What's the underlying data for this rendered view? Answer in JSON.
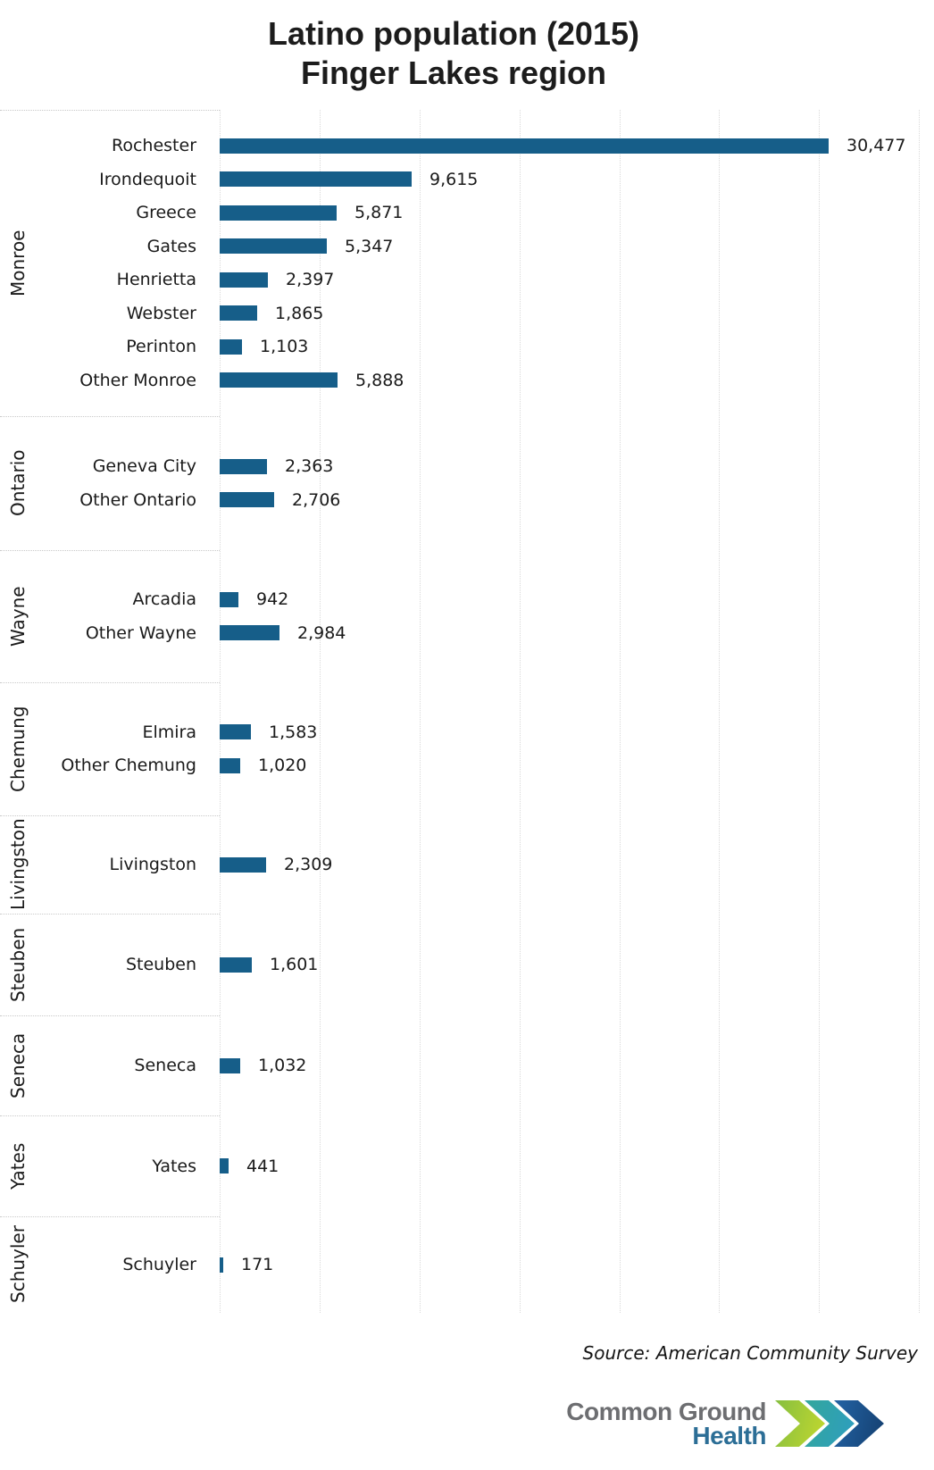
{
  "title": {
    "line1": "Latino population (2015)",
    "line2": "Finger Lakes region"
  },
  "source": "Source: American Community Survey",
  "logo": {
    "line1": "Common Ground",
    "line2": "Health"
  },
  "colors": {
    "bar": "#165e89",
    "gridline": "#d9d9d9",
    "logo_gray": "#6d6e71",
    "logo_blue": "#2c6e96",
    "chevron_green": "#8dc63f",
    "chevron_teal": "#2fa8a4",
    "chevron_blue": "#1c5d9d"
  },
  "chart_data": {
    "type": "bar",
    "orientation": "horizontal",
    "title": "Latino population (2015) Finger Lakes region",
    "xlabel": "",
    "ylabel": "",
    "xlim": [
      0,
      35750
    ],
    "grid_step": 5000,
    "grid": true,
    "value_labels": true,
    "groups": [
      {
        "county": "Monroe",
        "rows": [
          {
            "label": "Rochester",
            "value": 30477,
            "display": "30,477"
          },
          {
            "label": "Irondequoit",
            "value": 9615,
            "display": "9,615"
          },
          {
            "label": "Greece",
            "value": 5871,
            "display": "5,871"
          },
          {
            "label": "Gates",
            "value": 5347,
            "display": "5,347"
          },
          {
            "label": "Henrietta",
            "value": 2397,
            "display": "2,397"
          },
          {
            "label": "Webster",
            "value": 1865,
            "display": "1,865"
          },
          {
            "label": "Perinton",
            "value": 1103,
            "display": "1,103"
          },
          {
            "label": "Other Monroe",
            "value": 5888,
            "display": "5,888"
          }
        ]
      },
      {
        "county": "Ontario",
        "rows": [
          {
            "label": "Geneva City",
            "value": 2363,
            "display": "2,363"
          },
          {
            "label": "Other Ontario",
            "value": 2706,
            "display": "2,706"
          }
        ]
      },
      {
        "county": "Wayne",
        "rows": [
          {
            "label": "Arcadia",
            "value": 942,
            "display": "942"
          },
          {
            "label": "Other Wayne",
            "value": 2984,
            "display": "2,984"
          }
        ]
      },
      {
        "county": "Chemung",
        "rows": [
          {
            "label": "Elmira",
            "value": 1583,
            "display": "1,583"
          },
          {
            "label": "Other Chemung",
            "value": 1020,
            "display": "1,020"
          }
        ]
      },
      {
        "county": "Livingston",
        "rows": [
          {
            "label": "Livingston",
            "value": 2309,
            "display": "2,309"
          }
        ]
      },
      {
        "county": "Steuben",
        "rows": [
          {
            "label": "Steuben",
            "value": 1601,
            "display": "1,601"
          }
        ]
      },
      {
        "county": "Seneca",
        "rows": [
          {
            "label": "Seneca",
            "value": 1032,
            "display": "1,032"
          }
        ]
      },
      {
        "county": "Yates",
        "rows": [
          {
            "label": "Yates",
            "value": 441,
            "display": "441"
          }
        ]
      },
      {
        "county": "Schuyler",
        "rows": [
          {
            "label": "Schuyler",
            "value": 171,
            "display": "171"
          }
        ]
      }
    ]
  }
}
